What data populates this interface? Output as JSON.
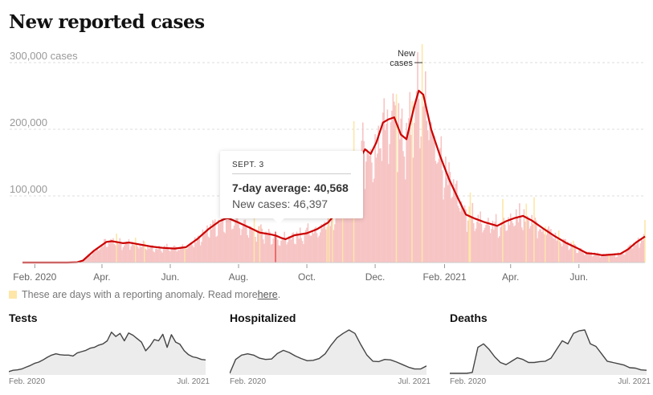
{
  "title": "New reported cases",
  "colors": {
    "line": "#cc0000",
    "bar": "#f7c4c4",
    "anomaly": "#fde6a8",
    "highlight_bar": "#d33",
    "mini_line": "#444",
    "mini_fill": "#ececec",
    "grid": "#ddd"
  },
  "chart_data": {
    "type": "bar",
    "title": "New reported cases",
    "ylabel": "cases",
    "y_ticks": [
      {
        "value": 100000,
        "label": "100,000"
      },
      {
        "value": 200000,
        "label": "200,000"
      },
      {
        "value": 300000,
        "label": "300,000 cases"
      }
    ],
    "ylim": [
      0,
      300000
    ],
    "x_range": [
      "2020-01-21",
      "2021-07-30"
    ],
    "x_ticks": [
      {
        "date": "2020-02-01",
        "label": "Feb. 2020"
      },
      {
        "date": "2020-04-01",
        "label": "Apr."
      },
      {
        "date": "2020-06-01",
        "label": "Jun."
      },
      {
        "date": "2020-08-01",
        "label": "Aug."
      },
      {
        "date": "2020-10-01",
        "label": "Oct."
      },
      {
        "date": "2020-12-01",
        "label": "Dec."
      },
      {
        "date": "2021-02-01",
        "label": "Feb. 2021"
      },
      {
        "date": "2021-04-01",
        "label": "Apr."
      },
      {
        "date": "2021-06-01",
        "label": "Jun."
      }
    ],
    "series": [
      {
        "name": "7-day average",
        "type": "line",
        "points": [
          [
            "2020-01-21",
            0
          ],
          [
            "2020-03-01",
            0
          ],
          [
            "2020-03-10",
            500
          ],
          [
            "2020-03-15",
            3000
          ],
          [
            "2020-03-25",
            18000
          ],
          [
            "2020-04-05",
            31000
          ],
          [
            "2020-04-10",
            32000
          ],
          [
            "2020-04-20",
            29000
          ],
          [
            "2020-04-25",
            30000
          ],
          [
            "2020-05-05",
            27000
          ],
          [
            "2020-05-15",
            24000
          ],
          [
            "2020-05-25",
            22000
          ],
          [
            "2020-06-05",
            21000
          ],
          [
            "2020-06-15",
            23000
          ],
          [
            "2020-06-25",
            35000
          ],
          [
            "2020-07-05",
            50000
          ],
          [
            "2020-07-15",
            62000
          ],
          [
            "2020-07-22",
            67000
          ],
          [
            "2020-08-01",
            60000
          ],
          [
            "2020-08-10",
            53000
          ],
          [
            "2020-08-20",
            45000
          ],
          [
            "2020-08-30",
            42000
          ],
          [
            "2020-09-03",
            40568
          ],
          [
            "2020-09-08",
            37000
          ],
          [
            "2020-09-12",
            35000
          ],
          [
            "2020-09-20",
            41000
          ],
          [
            "2020-10-01",
            44000
          ],
          [
            "2020-10-10",
            50000
          ],
          [
            "2020-10-20",
            60000
          ],
          [
            "2020-10-30",
            80000
          ],
          [
            "2020-11-08",
            110000
          ],
          [
            "2020-11-15",
            150000
          ],
          [
            "2020-11-22",
            170000
          ],
          [
            "2020-11-27",
            163000
          ],
          [
            "2020-12-02",
            180000
          ],
          [
            "2020-12-08",
            210000
          ],
          [
            "2020-12-13",
            215000
          ],
          [
            "2020-12-18",
            218000
          ],
          [
            "2020-12-24",
            192000
          ],
          [
            "2020-12-29",
            185000
          ],
          [
            "2021-01-05",
            235000
          ],
          [
            "2021-01-09",
            258000
          ],
          [
            "2021-01-13",
            252000
          ],
          [
            "2021-01-20",
            200000
          ],
          [
            "2021-01-28",
            160000
          ],
          [
            "2021-02-05",
            125000
          ],
          [
            "2021-02-12",
            100000
          ],
          [
            "2021-02-20",
            72000
          ],
          [
            "2021-02-28",
            66000
          ],
          [
            "2021-03-08",
            61000
          ],
          [
            "2021-03-20",
            55000
          ],
          [
            "2021-03-28",
            62000
          ],
          [
            "2021-04-05",
            67000
          ],
          [
            "2021-04-12",
            70000
          ],
          [
            "2021-04-20",
            63000
          ],
          [
            "2021-05-01",
            50000
          ],
          [
            "2021-05-10",
            40000
          ],
          [
            "2021-05-20",
            30000
          ],
          [
            "2021-05-30",
            22000
          ],
          [
            "2021-06-08",
            14000
          ],
          [
            "2021-06-15",
            13000
          ],
          [
            "2021-06-22",
            11000
          ],
          [
            "2021-07-01",
            12000
          ],
          [
            "2021-07-08",
            13000
          ],
          [
            "2021-07-15",
            20000
          ],
          [
            "2021-07-22",
            30000
          ],
          [
            "2021-07-30",
            39000
          ]
        ]
      },
      {
        "name": "New cases",
        "type": "bar",
        "annotation": "New cases"
      }
    ],
    "tooltip": {
      "date": "SEPT. 3",
      "avg_label": "7-day average: 40,568",
      "new_label": "New cases: 46,397",
      "avg_value": 40568,
      "new_value": 46397
    },
    "highlighted_date": "2020-09-03"
  },
  "annotation": {
    "line1": "New",
    "line2": "cases"
  },
  "legend": {
    "text": "These are days with a reporting anomaly. Read more ",
    "link": "here",
    "suffix": "."
  },
  "mini_charts": [
    {
      "title": "Tests",
      "start_label": "Feb. 2020",
      "end_label": "Jul. 2021",
      "values": [
        0.04,
        0.07,
        0.08,
        0.1,
        0.14,
        0.18,
        0.23,
        0.26,
        0.31,
        0.37,
        0.42,
        0.45,
        0.43,
        0.42,
        0.42,
        0.4,
        0.47,
        0.5,
        0.53,
        0.58,
        0.6,
        0.65,
        0.68,
        0.75,
        0.95,
        0.85,
        0.92,
        0.75,
        0.93,
        0.88,
        0.8,
        0.72,
        0.52,
        0.63,
        0.78,
        0.75,
        0.9,
        0.6,
        0.89,
        0.72,
        0.67,
        0.52,
        0.43,
        0.38,
        0.36,
        0.32,
        0.31
      ]
    },
    {
      "title": "Hospitalized",
      "start_label": "Feb. 2020",
      "end_label": "Jul. 2021",
      "values": [
        0.0,
        0.32,
        0.42,
        0.45,
        0.42,
        0.35,
        0.32,
        0.33,
        0.46,
        0.53,
        0.48,
        0.4,
        0.34,
        0.29,
        0.3,
        0.34,
        0.45,
        0.65,
        0.82,
        0.92,
        1.0,
        0.92,
        0.66,
        0.42,
        0.28,
        0.27,
        0.32,
        0.31,
        0.26,
        0.2,
        0.14,
        0.1,
        0.1,
        0.17
      ]
    },
    {
      "title": "Deaths",
      "start_label": "Feb. 2020",
      "end_label": "Jul. 2021",
      "values": [
        0,
        0,
        0,
        0,
        0.02,
        0.6,
        0.68,
        0.55,
        0.38,
        0.25,
        0.2,
        0.28,
        0.36,
        0.32,
        0.25,
        0.25,
        0.27,
        0.28,
        0.35,
        0.55,
        0.75,
        0.68,
        0.92,
        0.98,
        1.0,
        0.68,
        0.62,
        0.45,
        0.28,
        0.25,
        0.22,
        0.19,
        0.13,
        0.12,
        0.08,
        0.07
      ]
    }
  ]
}
